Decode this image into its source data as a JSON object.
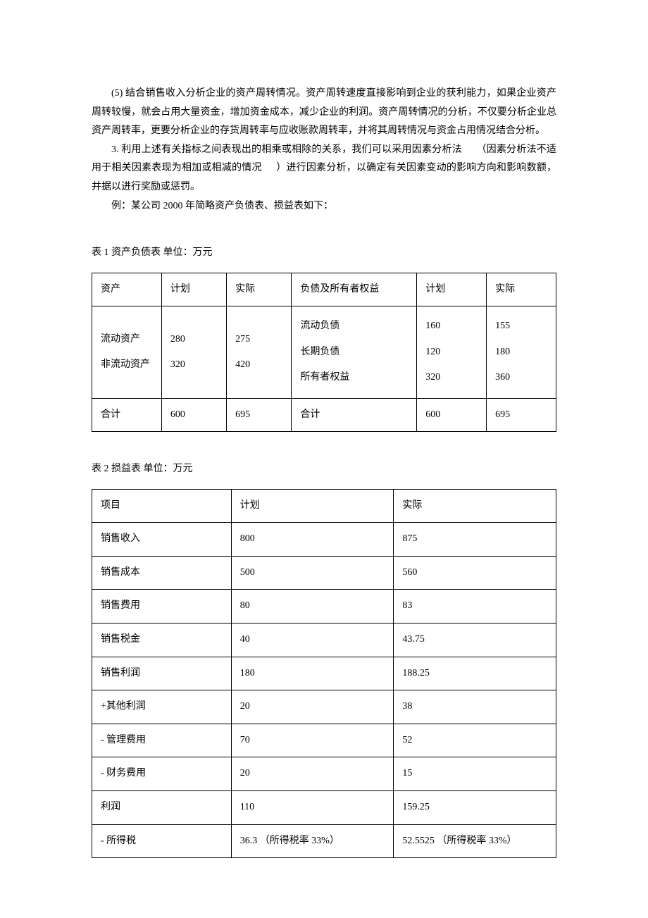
{
  "paragraphs": {
    "p1": "(5) 结合销售收入分析企业的资产周转情况。资产周转速度直接影响到企业的获利能力，如果企业资产周转较慢，就会占用大量资金，增加资金成本，减少企业的利润。资产周转情况的分析，不仅要分析企业总资产周转率，更要分析企业的存货周转率与应收账款周转率，并将其周转情况与资金占用情况结合分析。",
    "p2a": "3. 利用上述有关指标之间表现出的相乘或相除的关系，我们可以采用因素分析法",
    "p2b": "（因素分析法不适用于相关因素表现为相加或相减的情况",
    "p2c": "）进行因素分析，以确定有关因素变动的影响方向和影响数额，并据以进行奖励或惩罚。",
    "p3": "例：某公司  2000 年简略资产负债表、损益表如下："
  },
  "table1": {
    "caption": "表 1 资产负债表    单位：万元",
    "headers": {
      "assets": "资产",
      "plan": "计划",
      "actual": "实际",
      "liab": "负债及所有者权益"
    },
    "left": {
      "r1_label": "流动资产",
      "r1_plan": "280",
      "r1_actual": "275",
      "r2_label": "非流动资产",
      "r2_plan": "320",
      "r2_actual": "420"
    },
    "right": {
      "r1_label": "流动负债",
      "r1_plan": "160",
      "r1_actual": "155",
      "r2_label": "长期负债",
      "r2_plan": "120",
      "r2_actual": "180",
      "r3_label": "所有者权益",
      "r3_plan": "320",
      "r3_actual": "360"
    },
    "total": {
      "label": "合计",
      "left_plan": "600",
      "left_actual": "695",
      "right_plan": "600",
      "right_actual": "695"
    }
  },
  "table2": {
    "caption": "表 2 损益表    单位：万元",
    "headers": {
      "item": "项目",
      "plan": "计划",
      "actual": "实际"
    },
    "rows": [
      {
        "item": "销售收入",
        "plan": "800",
        "actual": "875"
      },
      {
        "item": "销售成本",
        "plan": "500",
        "actual": "560"
      },
      {
        "item": "销售费用",
        "plan": "80",
        "actual": "83"
      },
      {
        "item": "销售税金",
        "plan": "40",
        "actual": "43.75"
      },
      {
        "item": "销售利润",
        "plan": "180",
        "actual": "188.25"
      },
      {
        "item": "+其他利润",
        "plan": "20",
        "actual": "38"
      },
      {
        "item": "- 管理费用",
        "plan": "70",
        "actual": "52"
      },
      {
        "item": "- 财务费用",
        "plan": "20",
        "actual": "15"
      },
      {
        "item": "利润",
        "plan": "110",
        "actual": "159.25"
      },
      {
        "item": "- 所得税",
        "plan": "36.3 （所得税率   33%）",
        "actual": "52.5525 （所得税率   33%）"
      }
    ]
  }
}
